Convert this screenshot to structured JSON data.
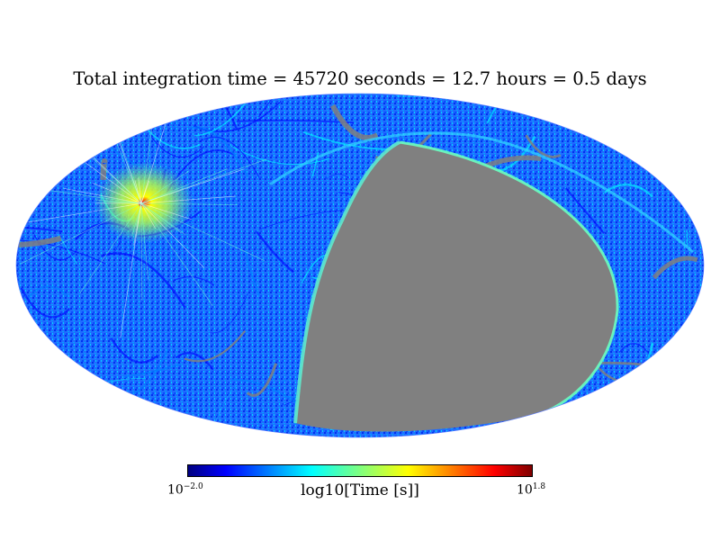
{
  "chart_data": {
    "type": "heatmap",
    "projection": "mollweide",
    "title": "Total integration time = 45720 seconds = 12.7 hours = 0.5 days",
    "colorbar": {
      "label": "log10[Time [s]]",
      "min": -2.0,
      "max": 1.8,
      "min_base": "10",
      "min_exp": "−2.0",
      "max_base": "10",
      "max_exp": "1.8",
      "colormap": "jet"
    },
    "no_data_color": "#808080",
    "features": {
      "unobserved_region": "large grey lens in lower-right hemisphere",
      "peak_region": "bright red/yellow spot in upper-left",
      "typical_level": -1.0
    }
  },
  "colors": {
    "jet": [
      "#00007f",
      "#0000ff",
      "#007fff",
      "#00ffff",
      "#7fff7f",
      "#ffff00",
      "#ff7f00",
      "#ff0000",
      "#7f0000"
    ],
    "grey": "#808080"
  }
}
